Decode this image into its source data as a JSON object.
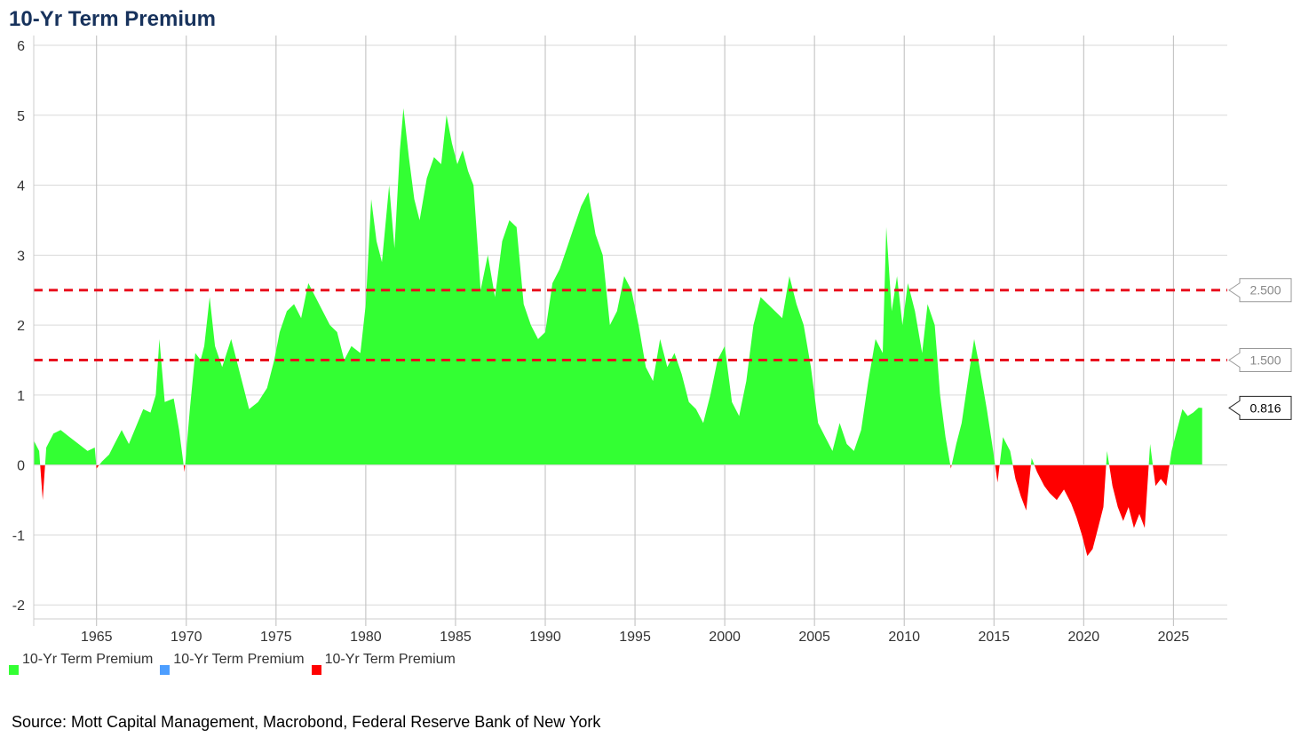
{
  "chart_data": {
    "type": "area",
    "title": "10-Yr Term Premium",
    "xlabel": "",
    "ylabel": "",
    "xlim": [
      1961.5,
      2028.0
    ],
    "ylim": [
      -2.2,
      6.0
    ],
    "y_ticks": [
      "-2",
      "-1",
      "0",
      "1",
      "2",
      "3",
      "4",
      "5",
      "6"
    ],
    "x_ticks": [
      "1965",
      "1970",
      "1975",
      "1980",
      "1985",
      "1990",
      "1995",
      "2000",
      "2005",
      "2010",
      "2015",
      "2020",
      "2025"
    ],
    "grid": true,
    "legend_position": "bottom-left",
    "series": [
      {
        "name": "10-Yr Term Premium",
        "color": "#33ff33",
        "role": "positive"
      },
      {
        "name": "10-Yr Term Premium",
        "color": "#4d9eff",
        "role": "line"
      },
      {
        "name": "10-Yr Term Premium",
        "color": "#ff0000",
        "role": "negative"
      }
    ],
    "points": [
      [
        1961.5,
        0.35
      ],
      [
        1961.8,
        0.2
      ],
      [
        1962.0,
        -0.5
      ],
      [
        1962.2,
        0.25
      ],
      [
        1962.6,
        0.45
      ],
      [
        1963.0,
        0.5
      ],
      [
        1963.5,
        0.4
      ],
      [
        1964.0,
        0.3
      ],
      [
        1964.5,
        0.2
      ],
      [
        1964.9,
        0.25
      ],
      [
        1965.0,
        -0.05
      ],
      [
        1965.3,
        0.05
      ],
      [
        1965.7,
        0.15
      ],
      [
        1966.0,
        0.3
      ],
      [
        1966.4,
        0.5
      ],
      [
        1966.8,
        0.3
      ],
      [
        1967.2,
        0.55
      ],
      [
        1967.6,
        0.8
      ],
      [
        1968.0,
        0.75
      ],
      [
        1968.3,
        1.0
      ],
      [
        1968.5,
        1.8
      ],
      [
        1968.8,
        0.9
      ],
      [
        1969.3,
        0.95
      ],
      [
        1969.6,
        0.5
      ],
      [
        1969.9,
        -0.1
      ],
      [
        1970.2,
        0.8
      ],
      [
        1970.5,
        1.6
      ],
      [
        1970.8,
        1.5
      ],
      [
        1971.0,
        1.7
      ],
      [
        1971.3,
        2.4
      ],
      [
        1971.6,
        1.7
      ],
      [
        1972.0,
        1.4
      ],
      [
        1972.5,
        1.8
      ],
      [
        1973.0,
        1.3
      ],
      [
        1973.5,
        0.8
      ],
      [
        1974.0,
        0.9
      ],
      [
        1974.5,
        1.1
      ],
      [
        1974.9,
        1.5
      ],
      [
        1975.2,
        1.9
      ],
      [
        1975.6,
        2.2
      ],
      [
        1976.0,
        2.3
      ],
      [
        1976.4,
        2.1
      ],
      [
        1976.8,
        2.6
      ],
      [
        1977.2,
        2.4
      ],
      [
        1977.6,
        2.2
      ],
      [
        1978.0,
        2.0
      ],
      [
        1978.4,
        1.9
      ],
      [
        1978.8,
        1.5
      ],
      [
        1979.2,
        1.7
      ],
      [
        1979.7,
        1.6
      ],
      [
        1980.0,
        2.3
      ],
      [
        1980.3,
        3.8
      ],
      [
        1980.6,
        3.2
      ],
      [
        1980.9,
        2.9
      ],
      [
        1981.3,
        4.0
      ],
      [
        1981.6,
        3.1
      ],
      [
        1981.9,
        4.5
      ],
      [
        1982.1,
        5.1
      ],
      [
        1982.4,
        4.4
      ],
      [
        1982.7,
        3.8
      ],
      [
        1983.0,
        3.5
      ],
      [
        1983.4,
        4.1
      ],
      [
        1983.8,
        4.4
      ],
      [
        1984.2,
        4.3
      ],
      [
        1984.5,
        5.0
      ],
      [
        1984.8,
        4.6
      ],
      [
        1985.1,
        4.3
      ],
      [
        1985.4,
        4.5
      ],
      [
        1985.7,
        4.2
      ],
      [
        1986.0,
        4.0
      ],
      [
        1986.4,
        2.5
      ],
      [
        1986.8,
        3.0
      ],
      [
        1987.2,
        2.4
      ],
      [
        1987.6,
        3.2
      ],
      [
        1988.0,
        3.5
      ],
      [
        1988.4,
        3.4
      ],
      [
        1988.8,
        2.3
      ],
      [
        1989.2,
        2.0
      ],
      [
        1989.6,
        1.8
      ],
      [
        1990.0,
        1.9
      ],
      [
        1990.4,
        2.6
      ],
      [
        1990.8,
        2.8
      ],
      [
        1991.2,
        3.1
      ],
      [
        1991.6,
        3.4
      ],
      [
        1992.0,
        3.7
      ],
      [
        1992.4,
        3.9
      ],
      [
        1992.8,
        3.3
      ],
      [
        1993.2,
        3.0
      ],
      [
        1993.6,
        2.0
      ],
      [
        1994.0,
        2.2
      ],
      [
        1994.4,
        2.7
      ],
      [
        1994.8,
        2.5
      ],
      [
        1995.2,
        2.0
      ],
      [
        1995.6,
        1.4
      ],
      [
        1996.0,
        1.2
      ],
      [
        1996.4,
        1.8
      ],
      [
        1996.8,
        1.4
      ],
      [
        1997.2,
        1.6
      ],
      [
        1997.6,
        1.3
      ],
      [
        1998.0,
        0.9
      ],
      [
        1998.4,
        0.8
      ],
      [
        1998.8,
        0.6
      ],
      [
        1999.2,
        1.0
      ],
      [
        1999.6,
        1.5
      ],
      [
        2000.0,
        1.7
      ],
      [
        2000.4,
        0.9
      ],
      [
        2000.8,
        0.7
      ],
      [
        2001.2,
        1.2
      ],
      [
        2001.6,
        2.0
      ],
      [
        2002.0,
        2.4
      ],
      [
        2002.4,
        2.3
      ],
      [
        2002.8,
        2.2
      ],
      [
        2003.2,
        2.1
      ],
      [
        2003.6,
        2.7
      ],
      [
        2004.0,
        2.3
      ],
      [
        2004.4,
        2.0
      ],
      [
        2004.8,
        1.4
      ],
      [
        2005.2,
        0.6
      ],
      [
        2005.6,
        0.4
      ],
      [
        2006.0,
        0.2
      ],
      [
        2006.4,
        0.6
      ],
      [
        2006.8,
        0.3
      ],
      [
        2007.2,
        0.2
      ],
      [
        2007.6,
        0.5
      ],
      [
        2008.0,
        1.2
      ],
      [
        2008.4,
        1.8
      ],
      [
        2008.8,
        1.6
      ],
      [
        2009.0,
        3.4
      ],
      [
        2009.3,
        2.2
      ],
      [
        2009.6,
        2.7
      ],
      [
        2009.9,
        2.0
      ],
      [
        2010.2,
        2.6
      ],
      [
        2010.6,
        2.2
      ],
      [
        2011.0,
        1.6
      ],
      [
        2011.3,
        2.3
      ],
      [
        2011.7,
        2.0
      ],
      [
        2012.0,
        1.0
      ],
      [
        2012.3,
        0.4
      ],
      [
        2012.6,
        -0.05
      ],
      [
        2012.9,
        0.3
      ],
      [
        2013.2,
        0.6
      ],
      [
        2013.6,
        1.3
      ],
      [
        2013.9,
        1.8
      ],
      [
        2014.2,
        1.4
      ],
      [
        2014.6,
        0.8
      ],
      [
        2014.9,
        0.3
      ],
      [
        2015.2,
        -0.25
      ],
      [
        2015.5,
        0.4
      ],
      [
        2015.9,
        0.2
      ],
      [
        2016.2,
        -0.2
      ],
      [
        2016.5,
        -0.45
      ],
      [
        2016.8,
        -0.65
      ],
      [
        2017.1,
        0.1
      ],
      [
        2017.4,
        -0.1
      ],
      [
        2017.8,
        -0.3
      ],
      [
        2018.1,
        -0.4
      ],
      [
        2018.5,
        -0.5
      ],
      [
        2018.9,
        -0.35
      ],
      [
        2019.3,
        -0.55
      ],
      [
        2019.6,
        -0.75
      ],
      [
        2019.9,
        -1.0
      ],
      [
        2020.2,
        -1.3
      ],
      [
        2020.5,
        -1.2
      ],
      [
        2020.8,
        -0.9
      ],
      [
        2021.1,
        -0.6
      ],
      [
        2021.3,
        0.2
      ],
      [
        2021.6,
        -0.3
      ],
      [
        2021.9,
        -0.6
      ],
      [
        2022.2,
        -0.8
      ],
      [
        2022.5,
        -0.6
      ],
      [
        2022.8,
        -0.9
      ],
      [
        2023.1,
        -0.7
      ],
      [
        2023.4,
        -0.9
      ],
      [
        2023.7,
        0.3
      ],
      [
        2024.0,
        -0.3
      ],
      [
        2024.3,
        -0.2
      ],
      [
        2024.6,
        -0.3
      ],
      [
        2024.9,
        0.2
      ],
      [
        2025.2,
        0.5
      ],
      [
        2025.5,
        0.8
      ],
      [
        2025.8,
        0.7
      ],
      [
        2026.1,
        0.75
      ],
      [
        2026.4,
        0.82
      ],
      [
        2026.6,
        0.816
      ]
    ],
    "reference_lines": [
      {
        "value": 2.5,
        "label": "2.500",
        "style": "dashed",
        "color": "#e8101e"
      },
      {
        "value": 1.5,
        "label": "1.500",
        "style": "dashed",
        "color": "#e8101e"
      }
    ],
    "last_value": {
      "value": 0.816,
      "label": "0.816"
    }
  },
  "source": "Source: Mott Capital Management, Macrobond, Federal Reserve Bank of New York"
}
